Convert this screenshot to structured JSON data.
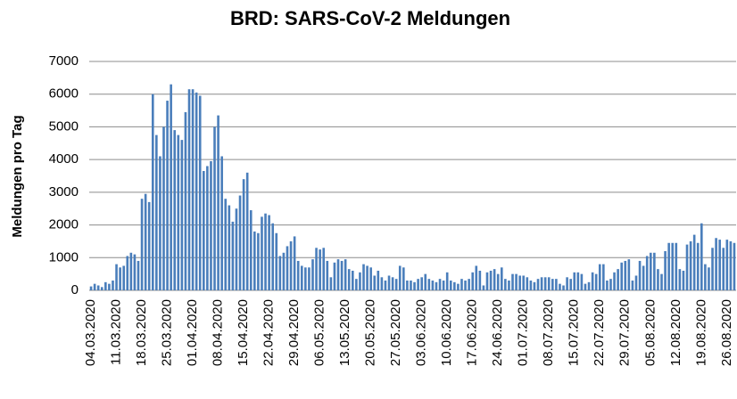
{
  "chart_data": {
    "type": "bar",
    "title": "BRD: SARS-CoV-2 Meldungen",
    "y_label": "Meldungen pro Tag",
    "categories": [
      "04.03.2020",
      null,
      null,
      null,
      null,
      null,
      null,
      "11.03.2020",
      null,
      null,
      null,
      null,
      null,
      null,
      "18.03.2020",
      null,
      null,
      null,
      null,
      null,
      null,
      "25.03.2020",
      null,
      null,
      null,
      null,
      null,
      null,
      "01.04.2020",
      null,
      null,
      null,
      null,
      null,
      null,
      "08.04.2020",
      null,
      null,
      null,
      null,
      null,
      null,
      "15.04.2020",
      null,
      null,
      null,
      null,
      null,
      null,
      "22.04.2020",
      null,
      null,
      null,
      null,
      null,
      null,
      "29.04.2020",
      null,
      null,
      null,
      null,
      null,
      null,
      "06.05.2020",
      null,
      null,
      null,
      null,
      null,
      null,
      "13.05.2020",
      null,
      null,
      null,
      null,
      null,
      null,
      "20.05.2020",
      null,
      null,
      null,
      null,
      null,
      null,
      "27.05.2020",
      null,
      null,
      null,
      null,
      null,
      null,
      "03.06.2020",
      null,
      null,
      null,
      null,
      null,
      null,
      "10.06.2020",
      null,
      null,
      null,
      null,
      null,
      null,
      "17.06.2020",
      null,
      null,
      null,
      null,
      null,
      null,
      "24.06.2020",
      null,
      null,
      null,
      null,
      null,
      null,
      "01.07.2020",
      null,
      null,
      null,
      null,
      null,
      null,
      "08.07.2020",
      null,
      null,
      null,
      null,
      null,
      null,
      "15.07.2020",
      null,
      null,
      null,
      null,
      null,
      null,
      "22.07.2020",
      null,
      null,
      null,
      null,
      null,
      null,
      "29.07.2020",
      null,
      null,
      null,
      null,
      null,
      null,
      "05.08.2020",
      null,
      null,
      null,
      null,
      null,
      null,
      "12.08.2020",
      null,
      null,
      null,
      null,
      null,
      null,
      "19.08.2020",
      null,
      null,
      null,
      null,
      null,
      null,
      "26.08.2020",
      null,
      null
    ],
    "values": [
      120,
      200,
      150,
      100,
      250,
      200,
      300,
      800,
      700,
      750,
      1050,
      1150,
      1100,
      900,
      2800,
      2950,
      2700,
      6000,
      4750,
      4100,
      5000,
      5800,
      6300,
      4900,
      4750,
      4600,
      5450,
      6150,
      6150,
      6050,
      5950,
      3650,
      3800,
      3950,
      5000,
      5350,
      4100,
      2800,
      2600,
      2100,
      2500,
      2900,
      3400,
      3600,
      2450,
      1800,
      1750,
      2250,
      2350,
      2300,
      2050,
      1750,
      1050,
      1150,
      1350,
      1500,
      1650,
      900,
      750,
      700,
      700,
      950,
      1300,
      1250,
      1300,
      900,
      400,
      850,
      950,
      900,
      950,
      650,
      600,
      350,
      550,
      800,
      750,
      700,
      450,
      600,
      400,
      300,
      450,
      400,
      350,
      750,
      700,
      300,
      300,
      250,
      350,
      400,
      500,
      350,
      300,
      250,
      350,
      300,
      550,
      300,
      250,
      200,
      350,
      300,
      350,
      550,
      750,
      600,
      150,
      550,
      600,
      650,
      500,
      700,
      350,
      300,
      500,
      500,
      450,
      450,
      400,
      300,
      250,
      350,
      400,
      400,
      400,
      350,
      350,
      200,
      150,
      400,
      350,
      550,
      550,
      500,
      200,
      250,
      550,
      500,
      800,
      800,
      300,
      350,
      550,
      650,
      850,
      900,
      950,
      300,
      450,
      900,
      750,
      1050,
      1150,
      1150,
      650,
      500,
      1200,
      1450,
      1450,
      1450,
      650,
      600,
      1400,
      1500,
      1700,
      1450,
      2050,
      800,
      700,
      1300,
      1600,
      1550,
      1300,
      1550,
      1500,
      1450
    ],
    "color": "#4a7ebb",
    "ylim": [
      0,
      7000
    ],
    "yticks": [
      0,
      1000,
      2000,
      3000,
      4000,
      5000,
      6000,
      7000
    ],
    "grid": true
  }
}
